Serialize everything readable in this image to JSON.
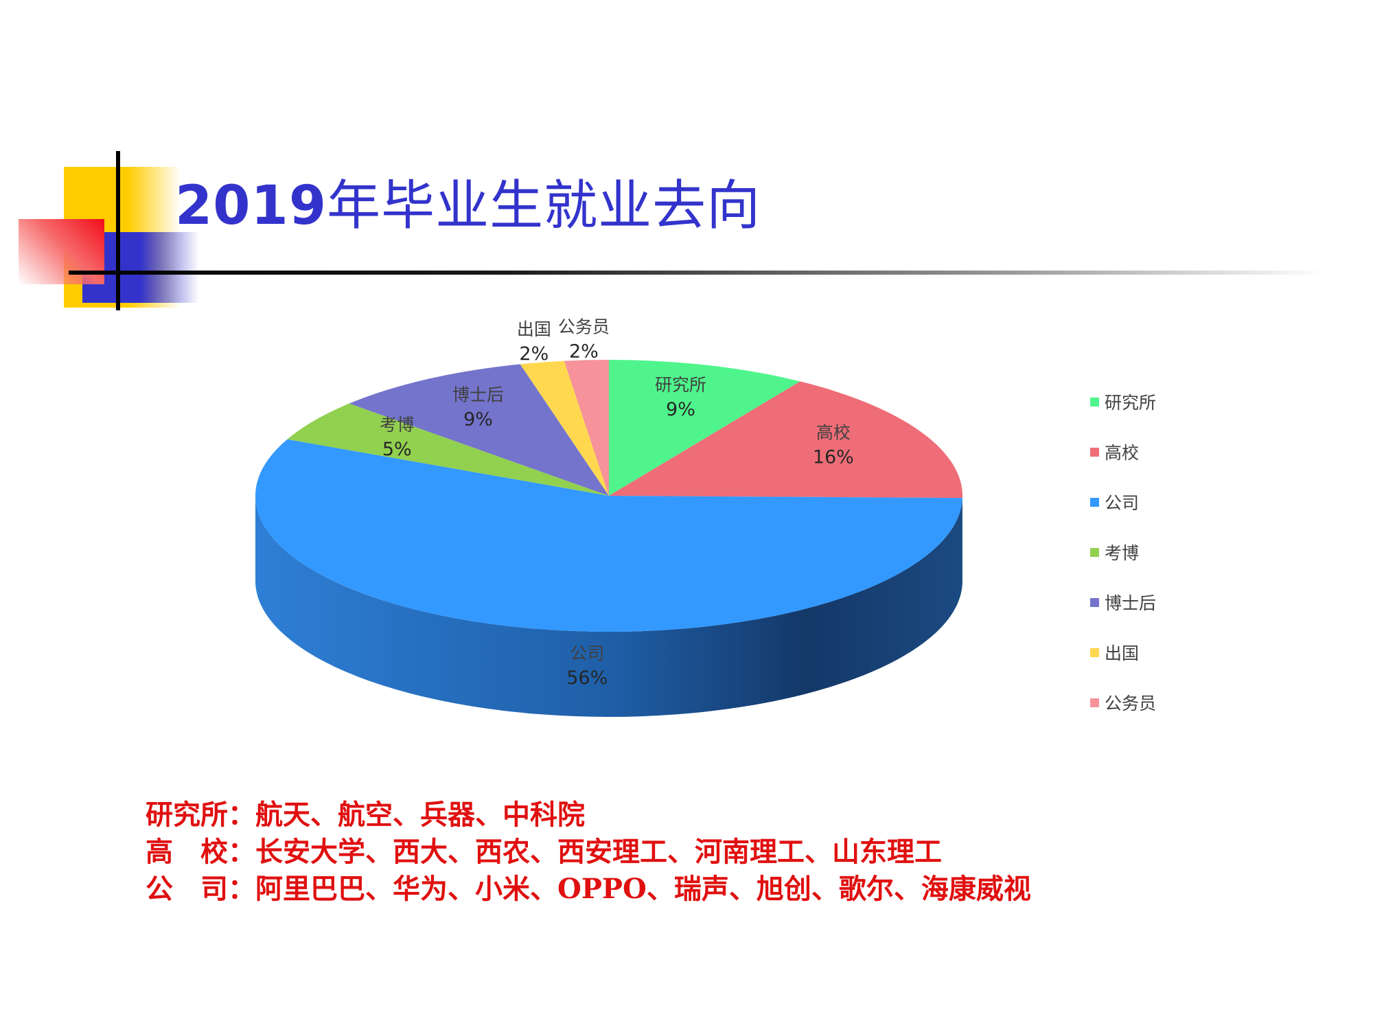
{
  "slide": {
    "title_year": "2019",
    "title_text": "年毕业生就业去向"
  },
  "chart_data": {
    "type": "pie",
    "style": "3d",
    "title": "",
    "legend_position": "right",
    "labels_shown": "category and percentage",
    "slices": [
      {
        "label": "研究所",
        "value": 9,
        "display": "9%",
        "color": "#4FF58C"
      },
      {
        "label": "高校",
        "value": 16,
        "display": "16%",
        "color": "#EF6D77"
      },
      {
        "label": "公司",
        "value": 56,
        "display": "56%",
        "color": "#3399FF"
      },
      {
        "label": "考博",
        "value": 5,
        "display": "5%",
        "color": "#92D050"
      },
      {
        "label": "博士后",
        "value": 9,
        "display": "9%",
        "color": "#7474CC"
      },
      {
        "label": "出国",
        "value": 2,
        "display": "2%",
        "color": "#FFD850"
      },
      {
        "label": "公务员",
        "value": 2,
        "display": "2%",
        "color": "#F5929A"
      }
    ]
  },
  "notes": [
    {
      "label": "研究所：",
      "text": "航天、航空、兵器、中科院"
    },
    {
      "label": "高　校：",
      "text": "长安大学、西大、西农、西安理工、河南理工、山东理工"
    },
    {
      "label": "公　司：",
      "text": "阿里巴巴、华为、小米、OPPO、瑞声、旭创、歌尔、海康威视"
    }
  ],
  "colors": {
    "title": "#3333CC",
    "notes": "#E01010",
    "deco_yellow": "#FFCC00",
    "deco_blue": "#3333CC",
    "deco_red": "#F20D1B"
  }
}
